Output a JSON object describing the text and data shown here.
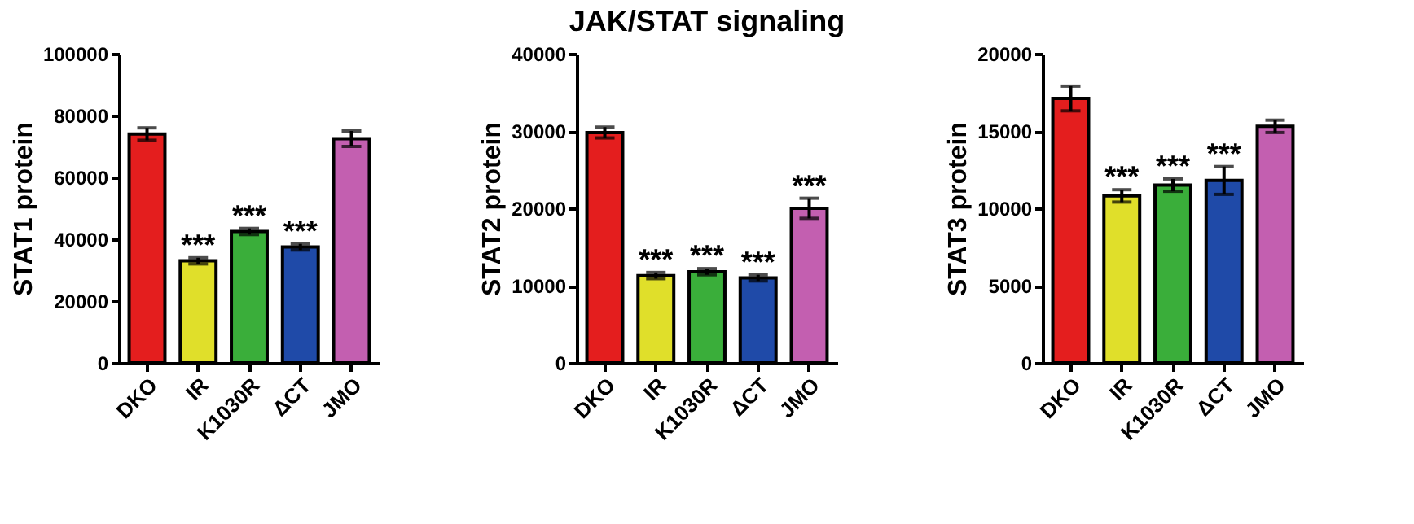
{
  "chart_data": [
    {
      "type": "bar",
      "ylabel": "STAT1 protein",
      "categories": [
        "DKO",
        "IR",
        "K1030R",
        "ΔCT",
        "JMO"
      ],
      "values": [
        74000,
        33000,
        42500,
        37500,
        72500
      ],
      "errors": [
        2000,
        1000,
        1000,
        1000,
        2500
      ],
      "colors": [
        "#e41e1e",
        "#e0df2a",
        "#3aae3a",
        "#1f4aa8",
        "#c35fb0"
      ],
      "ylim": [
        0,
        100000
      ],
      "yticks": [
        0,
        20000,
        40000,
        60000,
        80000,
        100000
      ],
      "grid": false,
      "legend": false,
      "annotations": [
        {
          "text": "***",
          "x": "IR",
          "y": 34000
        },
        {
          "text": "***",
          "x": "K1030R",
          "y": 43500
        },
        {
          "text": "***",
          "x": "ΔCT",
          "y": 38500
        }
      ]
    },
    {
      "type": "bar",
      "title": "JAK/STAT signaling",
      "ylabel": "STAT2 protein",
      "categories": [
        "DKO",
        "IR",
        "K1030R",
        "ΔCT",
        "JMO"
      ],
      "values": [
        29800,
        11300,
        11800,
        11000,
        20000
      ],
      "errors": [
        700,
        400,
        400,
        400,
        1300
      ],
      "colors": [
        "#e41e1e",
        "#e0df2a",
        "#3aae3a",
        "#1f4aa8",
        "#c35fb0"
      ],
      "ylim": [
        0,
        40000
      ],
      "yticks": [
        0,
        10000,
        20000,
        30000,
        40000
      ],
      "grid": false,
      "legend": false,
      "annotations": [
        {
          "text": "***",
          "x": "IR",
          "y": 11700
        },
        {
          "text": "***",
          "x": "K1030R",
          "y": 12200
        },
        {
          "text": "***",
          "x": "ΔCT",
          "y": 11400
        },
        {
          "text": "***",
          "x": "JMO",
          "y": 21300
        }
      ]
    },
    {
      "type": "bar",
      "ylabel": "STAT3 protein",
      "categories": [
        "DKO",
        "IR",
        "K1030R",
        "ΔCT",
        "JMO"
      ],
      "values": [
        17100,
        10800,
        11500,
        11800,
        15300
      ],
      "errors": [
        800,
        400,
        400,
        900,
        400
      ],
      "colors": [
        "#e41e1e",
        "#e0df2a",
        "#3aae3a",
        "#1f4aa8",
        "#c35fb0"
      ],
      "ylim": [
        0,
        20000
      ],
      "yticks": [
        0,
        5000,
        10000,
        15000,
        20000
      ],
      "grid": false,
      "legend": false,
      "annotations": [
        {
          "text": "***",
          "x": "IR",
          "y": 11200
        },
        {
          "text": "***",
          "x": "K1030R",
          "y": 11900
        },
        {
          "text": "***",
          "x": "ΔCT",
          "y": 12700
        }
      ]
    }
  ]
}
